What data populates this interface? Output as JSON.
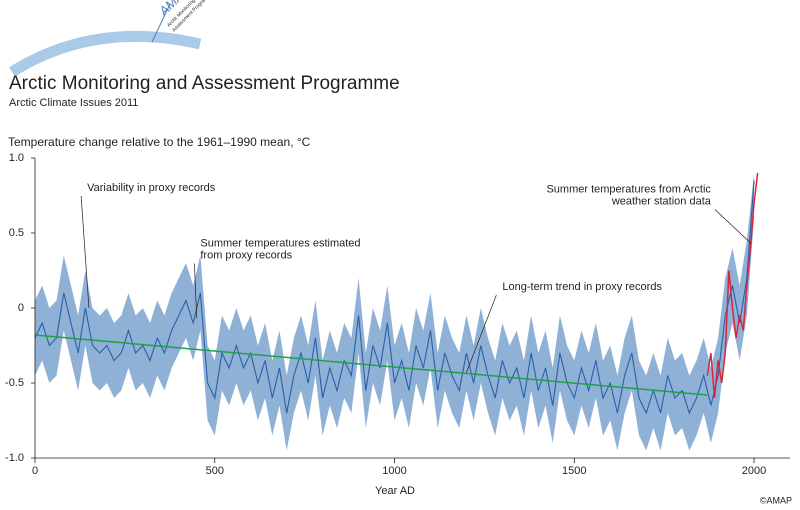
{
  "header": {
    "title": "Arctic Monitoring and Assessment Programme",
    "subtitle": "Arctic Climate Issues 2011",
    "logo": "AMAP",
    "logo_text": [
      "Arctic Monitoring and",
      "Assessment Programme"
    ]
  },
  "credit": "©AMAP",
  "chart_data": {
    "type": "line",
    "title": "Temperature change relative to the 1961–1990 mean, °C",
    "x_label": "Year AD",
    "xlim": [
      0,
      2100
    ],
    "xticks": [
      0,
      500,
      1000,
      1500,
      2000
    ],
    "ylim": [
      -1,
      1
    ],
    "yticks": [
      {
        "value": -1,
        "label": "-1.0"
      },
      -0.5,
      0,
      0.5,
      {
        "value": 1,
        "label": "1.0"
      }
    ],
    "proxy": {
      "color": "#2b5fa8",
      "band_color": "#8fb1d6",
      "x": [
        0,
        20,
        40,
        60,
        80,
        100,
        120,
        140,
        160,
        180,
        200,
        220,
        240,
        260,
        280,
        300,
        320,
        340,
        360,
        380,
        400,
        420,
        440,
        460,
        480,
        500,
        520,
        540,
        560,
        580,
        600,
        620,
        640,
        660,
        680,
        700,
        720,
        740,
        760,
        780,
        800,
        820,
        840,
        860,
        880,
        900,
        920,
        940,
        960,
        980,
        1000,
        1020,
        1040,
        1060,
        1080,
        1100,
        1120,
        1140,
        1160,
        1180,
        1200,
        1220,
        1240,
        1260,
        1280,
        1300,
        1320,
        1340,
        1360,
        1380,
        1400,
        1420,
        1440,
        1460,
        1480,
        1500,
        1520,
        1540,
        1560,
        1580,
        1600,
        1620,
        1640,
        1660,
        1680,
        1700,
        1720,
        1740,
        1760,
        1780,
        1800,
        1820,
        1840,
        1860,
        1880,
        1900,
        1920,
        1940,
        1960,
        1980,
        2000
      ],
      "values": [
        -0.2,
        -0.1,
        -0.25,
        -0.2,
        0.1,
        -0.1,
        -0.3,
        0,
        -0.25,
        -0.3,
        -0.25,
        -0.35,
        -0.3,
        -0.15,
        -0.3,
        -0.25,
        -0.35,
        -0.2,
        -0.3,
        -0.15,
        -0.05,
        0.05,
        -0.1,
        0.1,
        -0.5,
        -0.6,
        -0.3,
        -0.4,
        -0.25,
        -0.4,
        -0.3,
        -0.5,
        -0.35,
        -0.6,
        -0.4,
        -0.7,
        -0.45,
        -0.3,
        -0.5,
        -0.2,
        -0.6,
        -0.4,
        -0.55,
        -0.35,
        -0.45,
        -0.05,
        -0.55,
        -0.25,
        -0.4,
        -0.1,
        -0.5,
        -0.35,
        -0.55,
        -0.25,
        -0.4,
        -0.15,
        -0.55,
        -0.3,
        -0.45,
        -0.55,
        -0.3,
        -0.5,
        -0.25,
        -0.45,
        -0.6,
        -0.35,
        -0.5,
        -0.4,
        -0.6,
        -0.3,
        -0.55,
        -0.4,
        -0.65,
        -0.3,
        -0.5,
        -0.6,
        -0.4,
        -0.55,
        -0.35,
        -0.6,
        -0.5,
        -0.7,
        -0.45,
        -0.3,
        -0.6,
        -0.7,
        -0.55,
        -0.7,
        -0.45,
        -0.6,
        -0.55,
        -0.7,
        -0.6,
        -0.45,
        -0.65,
        -0.45,
        -0.05,
        0.15,
        -0.1,
        0.2,
        0.85
      ],
      "upper": [
        0.05,
        0.15,
        0,
        0.05,
        0.35,
        0.15,
        -0.05,
        0.25,
        0,
        -0.05,
        0,
        -0.1,
        -0.05,
        0.1,
        -0.05,
        0,
        -0.1,
        0.05,
        -0.05,
        0.1,
        0.2,
        0.3,
        0.15,
        0.35,
        -0.25,
        -0.35,
        -0.05,
        -0.15,
        0,
        -0.15,
        -0.05,
        -0.25,
        -0.1,
        -0.35,
        -0.15,
        -0.45,
        -0.2,
        -0.05,
        -0.25,
        0.05,
        -0.35,
        -0.15,
        -0.3,
        -0.1,
        -0.2,
        0.2,
        -0.3,
        0,
        -0.15,
        0.15,
        -0.25,
        -0.1,
        -0.3,
        0,
        -0.15,
        0.1,
        -0.3,
        -0.05,
        -0.2,
        -0.3,
        -0.05,
        -0.25,
        0,
        -0.2,
        -0.35,
        -0.1,
        -0.25,
        -0.15,
        -0.35,
        -0.05,
        -0.3,
        -0.15,
        -0.4,
        -0.05,
        -0.25,
        -0.35,
        -0.15,
        -0.3,
        -0.1,
        -0.35,
        -0.25,
        -0.45,
        -0.2,
        -0.05,
        -0.35,
        -0.45,
        -0.3,
        -0.45,
        -0.2,
        -0.35,
        -0.3,
        -0.45,
        -0.35,
        -0.2,
        -0.4,
        -0.2,
        0.2,
        0.4,
        0.15,
        0.45,
        0.9
      ],
      "lower": [
        -0.45,
        -0.35,
        -0.5,
        -0.45,
        -0.15,
        -0.35,
        -0.55,
        -0.25,
        -0.5,
        -0.55,
        -0.5,
        -0.6,
        -0.55,
        -0.4,
        -0.55,
        -0.5,
        -0.6,
        -0.45,
        -0.55,
        -0.4,
        -0.3,
        -0.2,
        -0.35,
        -0.15,
        -0.75,
        -0.85,
        -0.55,
        -0.65,
        -0.5,
        -0.65,
        -0.55,
        -0.75,
        -0.6,
        -0.85,
        -0.65,
        -0.95,
        -0.7,
        -0.55,
        -0.75,
        -0.45,
        -0.85,
        -0.65,
        -0.8,
        -0.6,
        -0.7,
        -0.3,
        -0.8,
        -0.5,
        -0.65,
        -0.35,
        -0.75,
        -0.6,
        -0.8,
        -0.5,
        -0.65,
        -0.4,
        -0.8,
        -0.55,
        -0.7,
        -0.8,
        -0.55,
        -0.75,
        -0.5,
        -0.7,
        -0.85,
        -0.6,
        -0.75,
        -0.65,
        -0.85,
        -0.55,
        -0.8,
        -0.65,
        -0.9,
        -0.55,
        -0.75,
        -0.85,
        -0.65,
        -0.8,
        -0.6,
        -0.85,
        -0.75,
        -0.95,
        -0.7,
        -0.55,
        -0.85,
        -0.95,
        -0.8,
        -0.95,
        -0.7,
        -0.85,
        -0.8,
        -0.95,
        -0.85,
        -0.7,
        -0.9,
        -0.7,
        -0.3,
        -0.1,
        -0.35,
        -0.05,
        0.6
      ]
    },
    "instrumental": {
      "color": "#d7263d",
      "x": [
        1870,
        1880,
        1890,
        1900,
        1910,
        1920,
        1930,
        1940,
        1950,
        1960,
        1970,
        1980,
        1990,
        2000,
        2010
      ],
      "values": [
        -0.45,
        -0.3,
        -0.6,
        -0.35,
        -0.5,
        -0.3,
        0.25,
        0,
        -0.2,
        -0.05,
        -0.15,
        0.15,
        0.4,
        0.7,
        0.9
      ]
    },
    "trend": {
      "color": "#1fa04a",
      "x": [
        0,
        1870
      ],
      "values": [
        -0.18,
        -0.58
      ]
    },
    "annotations": [
      {
        "text": [
          "Variability in proxy records"
        ],
        "x": 145,
        "y": 0.8,
        "to": [
          150,
          0.0
        ],
        "anchor": "start"
      },
      {
        "text": [
          "Summer temperatures estimated",
          "from proxy records"
        ],
        "x": 460,
        "y": 0.43,
        "to": [
          450,
          -0.07
        ],
        "anchor": "start"
      },
      {
        "text": [
          "Long-term trend in proxy records"
        ],
        "x": 1300,
        "y": 0.14,
        "to": [
          1200,
          -0.43
        ],
        "anchor": "start"
      },
      {
        "text": [
          "Summer temperatures from Arctic",
          "weather station data"
        ],
        "x": 1880,
        "y": 0.79,
        "to": [
          1992,
          0.43
        ],
        "anchor": "end"
      }
    ]
  }
}
